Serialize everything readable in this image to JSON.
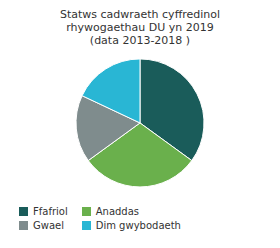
{
  "chart_data": {
    "type": "pie",
    "title": "Statws cadwraeth cyffredinol\nrhywogaethau DU yn 2019\n(data 2013-2018 )",
    "categories": [
      "Ffafriol",
      "Anaddas",
      "Gwael",
      "Dim gwybodaeth"
    ],
    "values": [
      35,
      30,
      17,
      18
    ],
    "colors": [
      "#1a5c5a",
      "#6ab04c",
      "#7f8c8d",
      "#29b6d4"
    ],
    "legend": "bottom"
  }
}
